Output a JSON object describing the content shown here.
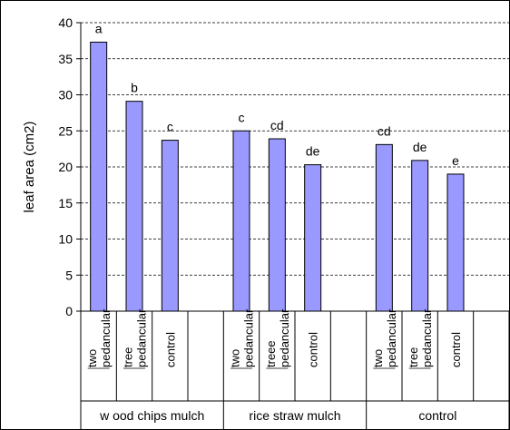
{
  "chart_data": {
    "type": "bar",
    "ylabel": "leaf area (cm2)",
    "ylim": [
      0,
      40
    ],
    "yticks": [
      0,
      5,
      10,
      15,
      20,
      25,
      30,
      35,
      40
    ],
    "grid": true,
    "bar_color": "#9999FF",
    "groups": [
      {
        "label": "w ood chips mulch",
        "bars": [
          {
            "category": [
              "two",
              "pedancular"
            ],
            "value": 37.3,
            "letter": "a"
          },
          {
            "category": [
              "tree",
              "pedancular"
            ],
            "value": 29.1,
            "letter": "b"
          },
          {
            "category": [
              "control"
            ],
            "value": 23.7,
            "letter": "c"
          }
        ]
      },
      {
        "label": "rice straw  mulch",
        "bars": [
          {
            "category": [
              "two",
              "pedancular"
            ],
            "value": 25.0,
            "letter": "c"
          },
          {
            "category": [
              "treee",
              "pedancular"
            ],
            "value": 23.9,
            "letter": "cd"
          },
          {
            "category": [
              "control"
            ],
            "value": 20.3,
            "letter": "de"
          }
        ]
      },
      {
        "label": "control",
        "bars": [
          {
            "category": [
              "two",
              "pedancular"
            ],
            "value": 23.1,
            "letter": "cd"
          },
          {
            "category": [
              "tree",
              "pedancular"
            ],
            "value": 20.9,
            "letter": "de"
          },
          {
            "category": [
              "control"
            ],
            "value": 19.0,
            "letter": "e"
          }
        ]
      }
    ]
  }
}
